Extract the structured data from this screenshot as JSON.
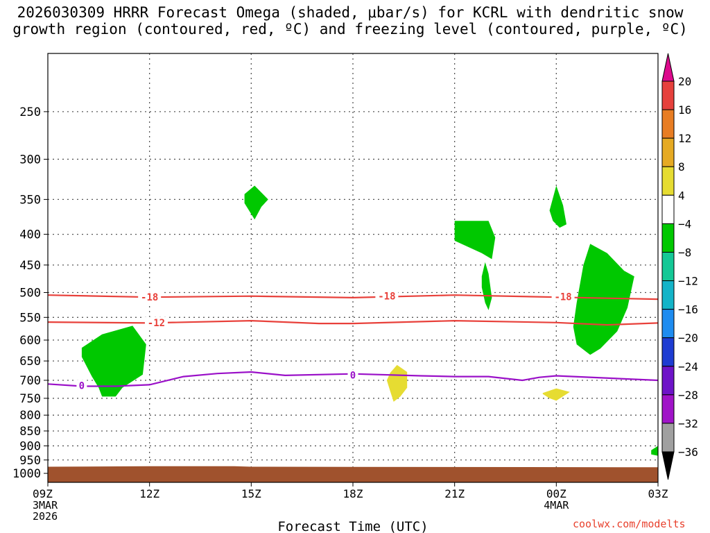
{
  "title": {
    "line1": "2026030309 HRRR Forecast Omega (shaded, μbar/s) for KCRL with dendritic snow",
    "line2": "growth region (contoured, red, ºC) and freezing level (contoured, purple, ºC)"
  },
  "credit": "coolwx.com/modelts",
  "chart_data": {
    "type": "heatmap",
    "xlabel": "Forecast Time (UTC)",
    "x_ticks": [
      {
        "hour": 0,
        "label": "09Z",
        "sub": [
          "3MAR",
          "2026"
        ]
      },
      {
        "hour": 3,
        "label": "12Z",
        "sub": []
      },
      {
        "hour": 6,
        "label": "15Z",
        "sub": []
      },
      {
        "hour": 9,
        "label": "18Z",
        "sub": []
      },
      {
        "hour": 12,
        "label": "21Z",
        "sub": []
      },
      {
        "hour": 15,
        "label": "00Z",
        "sub": [
          "4MAR"
        ]
      },
      {
        "hour": 18,
        "label": "03Z",
        "sub": []
      }
    ],
    "xlim": [
      0,
      18
    ],
    "ylabel": "",
    "y_log": true,
    "ylim": [
      1035,
      200
    ],
    "y_ticks": [
      250,
      300,
      350,
      400,
      450,
      500,
      550,
      600,
      650,
      700,
      750,
      800,
      850,
      900,
      950,
      1000
    ],
    "grid": true,
    "ground_color": "#a0522d",
    "ground_pressure": [
      {
        "x": 0,
        "p": 975
      },
      {
        "x": 3,
        "p": 973
      },
      {
        "x": 5.5,
        "p": 973
      },
      {
        "x": 6,
        "p": 975
      },
      {
        "x": 18,
        "p": 977
      }
    ],
    "contours": [
      {
        "name": "-18",
        "color": "#e8403a",
        "points": [
          [
            0,
            505
          ],
          [
            3,
            509
          ],
          [
            6,
            507
          ],
          [
            9,
            510
          ],
          [
            12,
            505
          ],
          [
            15,
            509
          ],
          [
            16.5,
            511
          ],
          [
            18,
            513
          ]
        ],
        "labels": [
          [
            3,
            509
          ],
          [
            10,
            507
          ],
          [
            15.2,
            508
          ]
        ]
      },
      {
        "name": "-12",
        "color": "#e8403a",
        "points": [
          [
            0,
            560
          ],
          [
            3,
            562
          ],
          [
            6,
            557
          ],
          [
            8,
            563
          ],
          [
            9,
            563
          ],
          [
            12,
            557
          ],
          [
            15,
            561
          ],
          [
            16.5,
            566
          ],
          [
            18,
            562
          ]
        ],
        "labels": [
          [
            3.2,
            561
          ]
        ]
      },
      {
        "name": "0",
        "color": "#9a10c8",
        "points": [
          [
            0,
            710
          ],
          [
            1,
            716
          ],
          [
            2,
            716
          ],
          [
            3,
            712
          ],
          [
            4,
            690
          ],
          [
            5,
            682
          ],
          [
            6,
            678
          ],
          [
            7,
            687
          ],
          [
            9,
            683
          ],
          [
            11,
            688
          ],
          [
            12,
            690
          ],
          [
            13,
            690
          ],
          [
            14,
            700
          ],
          [
            14.5,
            692
          ],
          [
            15,
            688
          ],
          [
            18,
            700
          ]
        ],
        "labels": [
          [
            1,
            714
          ],
          [
            9,
            686
          ]
        ]
      }
    ],
    "shaded_regions": [
      {
        "category": "-8 to -4",
        "color": "#00c800",
        "polygon": [
          [
            1.0,
            618
          ],
          [
            1.6,
            587
          ],
          [
            2.5,
            568
          ],
          [
            2.9,
            610
          ],
          [
            2.8,
            685
          ],
          [
            2.2,
            720
          ],
          [
            2.0,
            745
          ],
          [
            1.6,
            745
          ],
          [
            1.5,
            720
          ],
          [
            1.3,
            690
          ],
          [
            1.0,
            640
          ]
        ]
      },
      {
        "category": "-8 to -4",
        "color": "#00c800",
        "polygon": [
          [
            5.8,
            343
          ],
          [
            6.1,
            332
          ],
          [
            6.5,
            350
          ],
          [
            6.3,
            360
          ],
          [
            6.1,
            378
          ],
          [
            5.8,
            355
          ]
        ]
      },
      {
        "category": "-8 to -4",
        "color": "#00c800",
        "polygon": [
          [
            12.0,
            380
          ],
          [
            13.0,
            380
          ],
          [
            13.2,
            405
          ],
          [
            13.1,
            440
          ],
          [
            12.8,
            430
          ],
          [
            12.0,
            410
          ]
        ]
      },
      {
        "category": "-8 to -4",
        "color": "#00c800",
        "polygon": [
          [
            12.8,
            470
          ],
          [
            12.9,
            445
          ],
          [
            13.0,
            465
          ],
          [
            13.1,
            510
          ],
          [
            13.0,
            535
          ],
          [
            12.9,
            520
          ],
          [
            12.8,
            490
          ]
        ]
      },
      {
        "category": "-8 to -4",
        "color": "#00c800",
        "polygon": [
          [
            14.8,
            365
          ],
          [
            15.0,
            332
          ],
          [
            15.2,
            358
          ],
          [
            15.3,
            385
          ],
          [
            15.1,
            390
          ],
          [
            14.9,
            380
          ],
          [
            14.8,
            365
          ]
        ]
      },
      {
        "category": "-8 to -4",
        "color": "#00c800",
        "polygon": [
          [
            15.8,
            450
          ],
          [
            16.0,
            415
          ],
          [
            16.5,
            430
          ],
          [
            17.0,
            460
          ],
          [
            17.3,
            470
          ],
          [
            17.1,
            530
          ],
          [
            16.8,
            580
          ],
          [
            16.3,
            620
          ],
          [
            16.0,
            635
          ],
          [
            15.6,
            610
          ],
          [
            15.5,
            570
          ],
          [
            15.6,
            520
          ]
        ]
      },
      {
        "category": "-8 to -4",
        "color": "#00c800",
        "polygon": [
          [
            17.8,
            915
          ],
          [
            18.0,
            900
          ],
          [
            18.0,
            935
          ],
          [
            17.8,
            930
          ]
        ]
      },
      {
        "category": "4 to 8",
        "color": "#e6dc32",
        "polygon": [
          [
            10.1,
            680
          ],
          [
            10.3,
            660
          ],
          [
            10.6,
            678
          ],
          [
            10.6,
            720
          ],
          [
            10.4,
            745
          ],
          [
            10.2,
            760
          ],
          [
            10.1,
            730
          ],
          [
            10.0,
            700
          ]
        ]
      },
      {
        "category": "4 to 8",
        "color": "#e6dc32",
        "polygon": [
          [
            14.6,
            735
          ],
          [
            15.0,
            722
          ],
          [
            15.4,
            732
          ],
          [
            15.0,
            757
          ],
          [
            14.8,
            750
          ],
          [
            14.6,
            738
          ]
        ]
      }
    ],
    "colorbar": {
      "levels": [
        "20",
        "16",
        "12",
        "8",
        "4",
        "−4",
        "−8",
        "−12",
        "−16",
        "−20",
        "−24",
        "−28",
        "−32",
        "−36"
      ],
      "colors": [
        "#dc0a8c",
        "#e6413c",
        "#e87d23",
        "#e6aa23",
        "#e6dc32",
        "#ffffff",
        "#00c800",
        "#14c896",
        "#14b4c8",
        "#1e8cf0",
        "#1e3cd2",
        "#6e14c8",
        "#a014c8",
        "#a0a0a0",
        "#000000"
      ]
    }
  }
}
